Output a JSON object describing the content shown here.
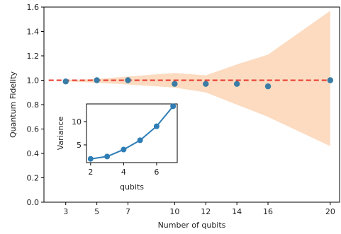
{
  "chart_data": [
    {
      "type": "scatter",
      "xlabel": "Number of qubits",
      "ylabel": "Quantum Fidelity",
      "xticks": [
        3,
        5,
        7,
        10,
        12,
        14,
        16,
        20
      ],
      "yticks": [
        "0.0",
        "0.2",
        "0.4",
        "0.6",
        "0.8",
        "1.0",
        "1.2",
        "1.4",
        "1.6"
      ],
      "xlim": [
        1.6,
        20.6
      ],
      "ylim": [
        0.0,
        1.6
      ],
      "grid": false,
      "series": [
        {
          "kind": "points",
          "x": [
            3,
            5,
            7,
            10,
            12,
            14,
            16,
            20
          ],
          "y": [
            0.99,
            1.0,
            1.0,
            0.97,
            0.97,
            0.97,
            0.95,
            1.0
          ],
          "color": "#3a7ca5"
        },
        {
          "kind": "band",
          "x": [
            3,
            5,
            7,
            10,
            12,
            14,
            16,
            20
          ],
          "lower": [
            0.99,
            0.98,
            0.965,
            0.94,
            0.9,
            0.8,
            0.7,
            0.46
          ],
          "upper": [
            1.0,
            1.01,
            1.03,
            1.06,
            1.04,
            1.13,
            1.21,
            1.57
          ],
          "color": "#fcd5b5"
        }
      ],
      "reference_line": {
        "y": 1.0,
        "style": "dashed",
        "color": "#e8392b"
      }
    },
    {
      "type": "line",
      "xlabel": "qubits",
      "ylabel": "Variance",
      "xticks": [
        2,
        4,
        6
      ],
      "yticks": [
        5,
        10
      ],
      "xlim": [
        1.75,
        7.25
      ],
      "ylim": [
        1.2,
        13.8
      ],
      "series": [
        {
          "x": [
            2,
            3,
            4,
            5,
            6,
            7
          ],
          "y": [
            2.0,
            2.5,
            4.0,
            6.0,
            9.0,
            13.3
          ],
          "color": "#2e7db5"
        }
      ]
    }
  ]
}
